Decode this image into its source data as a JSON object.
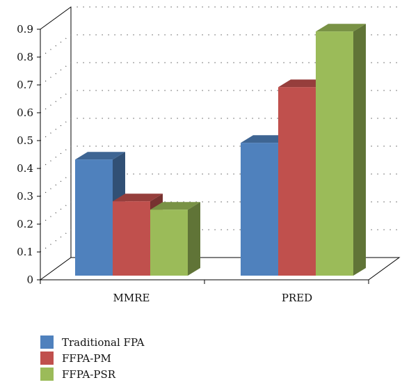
{
  "chart_data": {
    "type": "bar",
    "categories": [
      "MMRE",
      "PRED"
    ],
    "series": [
      {
        "name": "Traditional FPA",
        "values": [
          0.43,
          0.49
        ],
        "color": "#4f81bd"
      },
      {
        "name": "FFPA-PM",
        "values": [
          0.28,
          0.69
        ],
        "color": "#c0504d"
      },
      {
        "name": "FFPA-PSR",
        "values": [
          0.25,
          0.89
        ],
        "color": "#9bbb59"
      }
    ],
    "yticks": [
      "0",
      "0.1",
      "0.2",
      "0.3",
      "0.4",
      "0.5",
      "0.6",
      "0.7",
      "0.8",
      "0.9"
    ],
    "ylim": [
      0,
      0.9
    ],
    "grid": true,
    "legend_position": "bottom-left",
    "title": "",
    "xlabel": "",
    "ylabel": ""
  }
}
